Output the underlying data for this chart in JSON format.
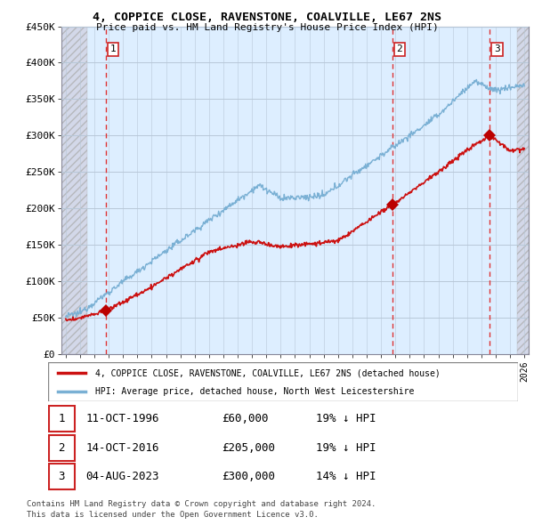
{
  "title1": "4, COPPICE CLOSE, RAVENSTONE, COALVILLE, LE67 2NS",
  "title2": "Price paid vs. HM Land Registry's House Price Index (HPI)",
  "ylabel_ticks": [
    "£0",
    "£50K",
    "£100K",
    "£150K",
    "£200K",
    "£250K",
    "£300K",
    "£350K",
    "£400K",
    "£450K"
  ],
  "ytick_vals": [
    0,
    50000,
    100000,
    150000,
    200000,
    250000,
    300000,
    350000,
    400000,
    450000
  ],
  "ylim": [
    0,
    450000
  ],
  "xlim_start": 1993.7,
  "xlim_end": 2026.3,
  "sale_dates": [
    1996.78,
    2016.78,
    2023.58
  ],
  "sale_prices": [
    60000,
    205000,
    300000
  ],
  "sale_labels": [
    "1",
    "2",
    "3"
  ],
  "dashed_line_color": "#dd3333",
  "sale_dot_color": "#bb0000",
  "hpi_line_color": "#7ab0d4",
  "price_line_color": "#cc1111",
  "chart_bg_color": "#ddeeff",
  "hatch_color": "#c8c8d8",
  "grid_color": "#b8c8d8",
  "legend_entries": [
    "4, COPPICE CLOSE, RAVENSTONE, COALVILLE, LE67 2NS (detached house)",
    "HPI: Average price, detached house, North West Leicestershire"
  ],
  "table_rows": [
    [
      "1",
      "11-OCT-1996",
      "£60,000",
      "19% ↓ HPI"
    ],
    [
      "2",
      "14-OCT-2016",
      "£205,000",
      "19% ↓ HPI"
    ],
    [
      "3",
      "04-AUG-2023",
      "£300,000",
      "14% ↓ HPI"
    ]
  ],
  "footnote1": "Contains HM Land Registry data © Crown copyright and database right 2024.",
  "footnote2": "This data is licensed under the Open Government Licence v3.0."
}
